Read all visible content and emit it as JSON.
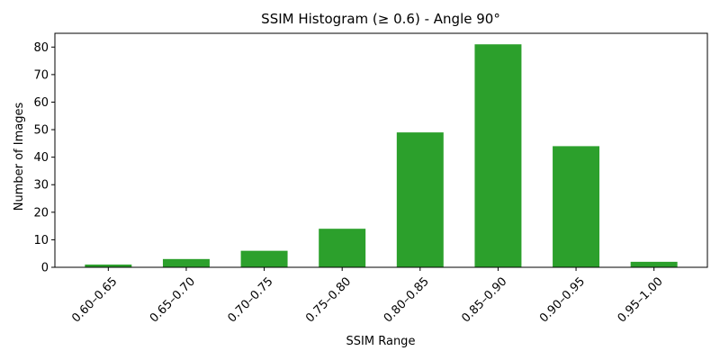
{
  "chart_data": {
    "type": "bar",
    "title": "SSIM Histogram (≥ 0.6) - Angle 90°",
    "xlabel": "SSIM Range",
    "ylabel": "Number of Images",
    "categories": [
      "0.60–0.65",
      "0.65–0.70",
      "0.70–0.75",
      "0.75–0.80",
      "0.80–0.85",
      "0.85–0.90",
      "0.90–0.95",
      "0.95–1.00"
    ],
    "values": [
      1,
      3,
      6,
      14,
      49,
      81,
      44,
      2
    ],
    "ylim": [
      0,
      85
    ],
    "yticks": [
      0,
      10,
      20,
      30,
      40,
      50,
      60,
      70,
      80
    ],
    "bar_color": "#2ca02c",
    "grid": false,
    "legend": "none",
    "xtick_rotation_deg": 45
  }
}
